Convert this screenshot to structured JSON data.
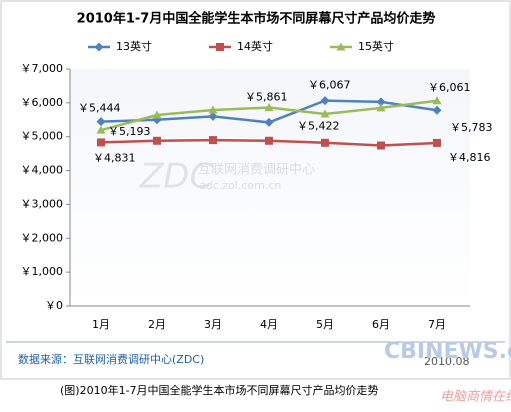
{
  "chart_data": {
    "type": "line",
    "title": "2010年1-7月中国全能学生本市场不同屏幕尺寸产品均价走势",
    "categories": [
      "1月",
      "2月",
      "3月",
      "4月",
      "5月",
      "6月",
      "7月"
    ],
    "series": [
      {
        "name": "13英寸",
        "color": "#4f81bd",
        "marker": "diamond",
        "values": [
          5444,
          5500,
          5600,
          5422,
          6067,
          6030,
          5783
        ],
        "value_labels": [
          "￥5,444",
          null,
          null,
          "￥5,422",
          "￥6,067",
          null,
          "￥5,783"
        ]
      },
      {
        "name": "14英寸",
        "color": "#c0504d",
        "marker": "square",
        "values": [
          4831,
          4880,
          4900,
          4880,
          4820,
          4740,
          4816
        ],
        "value_labels": [
          "￥4,831",
          null,
          null,
          null,
          null,
          null,
          "￥4,816"
        ]
      },
      {
        "name": "15英寸",
        "color": "#9bbb59",
        "marker": "triangle",
        "values": [
          5193,
          5640,
          5790,
          5861,
          5670,
          5850,
          6061
        ],
        "value_labels": [
          "￥5,193",
          null,
          null,
          "￥5,861",
          null,
          null,
          "￥6,061"
        ]
      }
    ],
    "ylim": [
      0,
      7000
    ],
    "yticks": [
      {
        "value": 0,
        "label": "￥0"
      },
      {
        "value": 1000,
        "label": "￥1,000"
      },
      {
        "value": 2000,
        "label": "￥2,000"
      },
      {
        "value": 3000,
        "label": "￥3,000"
      },
      {
        "value": 4000,
        "label": "￥4,000"
      },
      {
        "value": 5000,
        "label": "￥5,000"
      },
      {
        "value": 6000,
        "label": "￥6,000"
      },
      {
        "value": 7000,
        "label": "￥7,000"
      }
    ],
    "grid": false,
    "legend": "top"
  },
  "source": "数据来源：互联网消费调研中心(ZDC)",
  "date": "2010.08",
  "caption": "(图)2010年1-7月中国全能学生本市场不同屏幕尺寸产品均价走势",
  "watermarks": [
    "ZDC",
    "互联网消费调研中心",
    "zdc.zol.com.cn",
    "CBINEWS.com",
    "电脑商情在线"
  ]
}
